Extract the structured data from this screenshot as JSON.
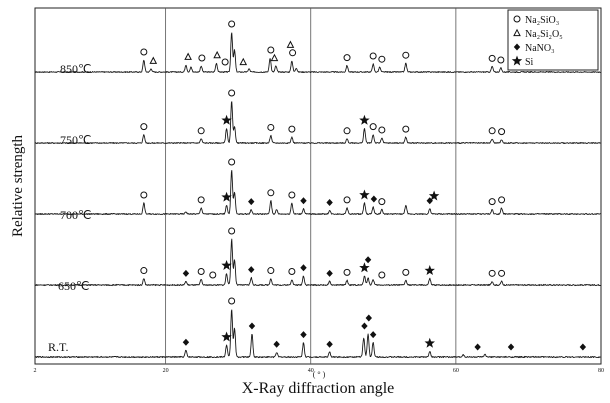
{
  "chart_data": {
    "type": "line",
    "xlabel": "X-Ray diffraction angle",
    "xunit": "( ° )",
    "ylabel": "Relative strength",
    "xlim": [
      2,
      80
    ],
    "x_ticks": [
      {
        "value": 2,
        "label": "2"
      },
      {
        "value": 20,
        "label": "20"
      },
      {
        "value": 40,
        "label": "40"
      },
      {
        "value": 60,
        "label": "60"
      },
      {
        "value": 80,
        "label": "80"
      }
    ],
    "grid_x": [
      20,
      40,
      60
    ],
    "legend": [
      {
        "symbol": "circle",
        "label": "Na₂SiO₃"
      },
      {
        "symbol": "triangle",
        "label": "Na₂Si₂O₅"
      },
      {
        "symbol": "diamond",
        "label": "NaNO₃"
      },
      {
        "symbol": "star",
        "label": "Si"
      }
    ],
    "series": [
      {
        "name": "850℃",
        "peaks": [
          [
            17.0,
            0.3
          ],
          [
            18.0,
            0.08
          ],
          [
            22.8,
            0.18
          ],
          [
            23.5,
            0.12
          ],
          [
            24.9,
            0.15
          ],
          [
            27.0,
            0.22
          ],
          [
            29.1,
            1.0
          ],
          [
            29.5,
            0.55
          ],
          [
            31.5,
            0.08
          ],
          [
            34.4,
            0.35
          ],
          [
            35.2,
            0.15
          ],
          [
            37.4,
            0.28
          ],
          [
            38.0,
            0.1
          ],
          [
            45.0,
            0.16
          ],
          [
            48.6,
            0.2
          ],
          [
            49.5,
            0.12
          ],
          [
            53.1,
            0.22
          ],
          [
            65.0,
            0.14
          ],
          [
            66.2,
            0.1
          ]
        ],
        "markers": [
          {
            "symbol": "circle",
            "x": 17.0
          },
          {
            "symbol": "triangle",
            "x": 18.3
          },
          {
            "symbol": "triangle",
            "x": 23.1
          },
          {
            "symbol": "circle",
            "x": 25.0
          },
          {
            "symbol": "triangle",
            "x": 27.1
          },
          {
            "symbol": "circle",
            "x": 28.2
          },
          {
            "symbol": "circle",
            "x": 29.1
          },
          {
            "symbol": "triangle",
            "x": 30.7
          },
          {
            "symbol": "circle",
            "x": 34.5
          },
          {
            "symbol": "triangle",
            "x": 35.0
          },
          {
            "symbol": "circle",
            "x": 37.5
          },
          {
            "symbol": "triangle",
            "x": 37.2
          },
          {
            "symbol": "circle",
            "x": 45.0
          },
          {
            "symbol": "circle",
            "x": 48.6
          },
          {
            "symbol": "circle",
            "x": 49.8
          },
          {
            "symbol": "circle",
            "x": 53.1
          },
          {
            "symbol": "circle",
            "x": 65.0
          },
          {
            "symbol": "circle",
            "x": 66.2
          }
        ]
      },
      {
        "name": "750℃",
        "peaks": [
          [
            17.0,
            0.2
          ],
          [
            24.9,
            0.1
          ],
          [
            28.4,
            0.35
          ],
          [
            29.1,
            1.0
          ],
          [
            29.5,
            0.4
          ],
          [
            34.5,
            0.18
          ],
          [
            37.4,
            0.14
          ],
          [
            45.0,
            0.1
          ],
          [
            47.4,
            0.35
          ],
          [
            48.6,
            0.2
          ],
          [
            49.8,
            0.12
          ],
          [
            53.1,
            0.14
          ],
          [
            65.0,
            0.1
          ],
          [
            66.3,
            0.08
          ]
        ],
        "markers": [
          {
            "symbol": "circle",
            "x": 17.0
          },
          {
            "symbol": "circle",
            "x": 24.9
          },
          {
            "symbol": "star",
            "x": 28.4
          },
          {
            "symbol": "circle",
            "x": 29.1
          },
          {
            "symbol": "circle",
            "x": 34.5
          },
          {
            "symbol": "circle",
            "x": 37.4
          },
          {
            "symbol": "circle",
            "x": 45.0
          },
          {
            "symbol": "star",
            "x": 47.4
          },
          {
            "symbol": "circle",
            "x": 48.6
          },
          {
            "symbol": "circle",
            "x": 49.8
          },
          {
            "symbol": "circle",
            "x": 53.1
          },
          {
            "symbol": "circle",
            "x": 65.0
          },
          {
            "symbol": "circle",
            "x": 66.3
          }
        ]
      },
      {
        "name": "700℃",
        "peaks": [
          [
            17.0,
            0.25
          ],
          [
            22.8,
            0.05
          ],
          [
            24.9,
            0.14
          ],
          [
            28.4,
            0.2
          ],
          [
            29.1,
            1.0
          ],
          [
            29.5,
            0.5
          ],
          [
            31.8,
            0.1
          ],
          [
            34.5,
            0.3
          ],
          [
            35.3,
            0.1
          ],
          [
            37.4,
            0.25
          ],
          [
            39.0,
            0.12
          ],
          [
            42.6,
            0.08
          ],
          [
            45.0,
            0.14
          ],
          [
            47.4,
            0.25
          ],
          [
            48.6,
            0.16
          ],
          [
            49.8,
            0.1
          ],
          [
            53.1,
            0.2
          ],
          [
            56.4,
            0.12
          ],
          [
            65.0,
            0.1
          ],
          [
            66.3,
            0.14
          ]
        ],
        "markers": [
          {
            "symbol": "circle",
            "x": 17.0
          },
          {
            "symbol": "circle",
            "x": 24.9
          },
          {
            "symbol": "star",
            "x": 28.4
          },
          {
            "symbol": "circle",
            "x": 29.1
          },
          {
            "symbol": "diamond",
            "x": 31.8
          },
          {
            "symbol": "circle",
            "x": 34.5
          },
          {
            "symbol": "circle",
            "x": 37.4
          },
          {
            "symbol": "diamond",
            "x": 39.0
          },
          {
            "symbol": "diamond",
            "x": 42.6
          },
          {
            "symbol": "circle",
            "x": 45.0
          },
          {
            "symbol": "star",
            "x": 47.4
          },
          {
            "symbol": "diamond",
            "x": 48.7
          },
          {
            "symbol": "circle",
            "x": 49.8
          },
          {
            "symbol": "diamond",
            "x": 56.4
          },
          {
            "symbol": "star",
            "x": 57.0
          },
          {
            "symbol": "circle",
            "x": 65.0
          },
          {
            "symbol": "circle",
            "x": 66.3
          }
        ]
      },
      {
        "name": "650℃",
        "peaks": [
          [
            17.0,
            0.14
          ],
          [
            22.8,
            0.08
          ],
          [
            24.9,
            0.12
          ],
          [
            28.4,
            0.25
          ],
          [
            29.1,
            1.0
          ],
          [
            29.5,
            0.55
          ],
          [
            31.8,
            0.16
          ],
          [
            34.5,
            0.14
          ],
          [
            37.4,
            0.12
          ],
          [
            39.0,
            0.2
          ],
          [
            42.6,
            0.08
          ],
          [
            45.0,
            0.1
          ],
          [
            47.4,
            0.2
          ],
          [
            47.9,
            0.16
          ],
          [
            48.6,
            0.12
          ],
          [
            53.1,
            0.1
          ],
          [
            56.4,
            0.14
          ],
          [
            65.0,
            0.08
          ],
          [
            66.3,
            0.08
          ]
        ],
        "markers": [
          {
            "symbol": "circle",
            "x": 17.0
          },
          {
            "symbol": "diamond",
            "x": 22.8
          },
          {
            "symbol": "circle",
            "x": 24.9
          },
          {
            "symbol": "circle",
            "x": 26.5
          },
          {
            "symbol": "star",
            "x": 28.4
          },
          {
            "symbol": "circle",
            "x": 29.1
          },
          {
            "symbol": "diamond",
            "x": 31.8
          },
          {
            "symbol": "circle",
            "x": 34.5
          },
          {
            "symbol": "circle",
            "x": 37.4
          },
          {
            "symbol": "diamond",
            "x": 39.0
          },
          {
            "symbol": "diamond",
            "x": 42.6
          },
          {
            "symbol": "circle",
            "x": 45.0
          },
          {
            "symbol": "star",
            "x": 47.4
          },
          {
            "symbol": "diamond",
            "x": 47.9
          },
          {
            "symbol": "circle",
            "x": 49.8
          },
          {
            "symbol": "circle",
            "x": 53.1
          },
          {
            "symbol": "star",
            "x": 56.4
          },
          {
            "symbol": "circle",
            "x": 65.0
          },
          {
            "symbol": "circle",
            "x": 66.3
          }
        ]
      },
      {
        "name": "R.T.",
        "peaks": [
          [
            22.8,
            0.14
          ],
          [
            28.4,
            0.25
          ],
          [
            29.1,
            1.0
          ],
          [
            29.5,
            0.6
          ],
          [
            31.9,
            0.48
          ],
          [
            35.3,
            0.1
          ],
          [
            39.0,
            0.3
          ],
          [
            42.6,
            0.1
          ],
          [
            47.3,
            0.4
          ],
          [
            47.9,
            0.48
          ],
          [
            48.6,
            0.3
          ],
          [
            56.4,
            0.12
          ],
          [
            61.0,
            0.05
          ],
          [
            64.0,
            0.05
          ]
        ],
        "markers": [
          {
            "symbol": "diamond",
            "x": 22.8
          },
          {
            "symbol": "star",
            "x": 28.4
          },
          {
            "symbol": "circle",
            "x": 29.1
          },
          {
            "symbol": "diamond",
            "x": 31.9
          },
          {
            "symbol": "diamond",
            "x": 35.3
          },
          {
            "symbol": "diamond",
            "x": 39.0
          },
          {
            "symbol": "diamond",
            "x": 42.6
          },
          {
            "symbol": "diamond",
            "x": 47.4
          },
          {
            "symbol": "diamond",
            "x": 48.0
          },
          {
            "symbol": "diamond",
            "x": 48.6
          },
          {
            "symbol": "star",
            "x": 56.4
          },
          {
            "symbol": "diamond",
            "x": 63.0
          },
          {
            "symbol": "diamond",
            "x": 67.6
          },
          {
            "symbol": "diamond",
            "x": 77.5
          }
        ]
      }
    ]
  }
}
